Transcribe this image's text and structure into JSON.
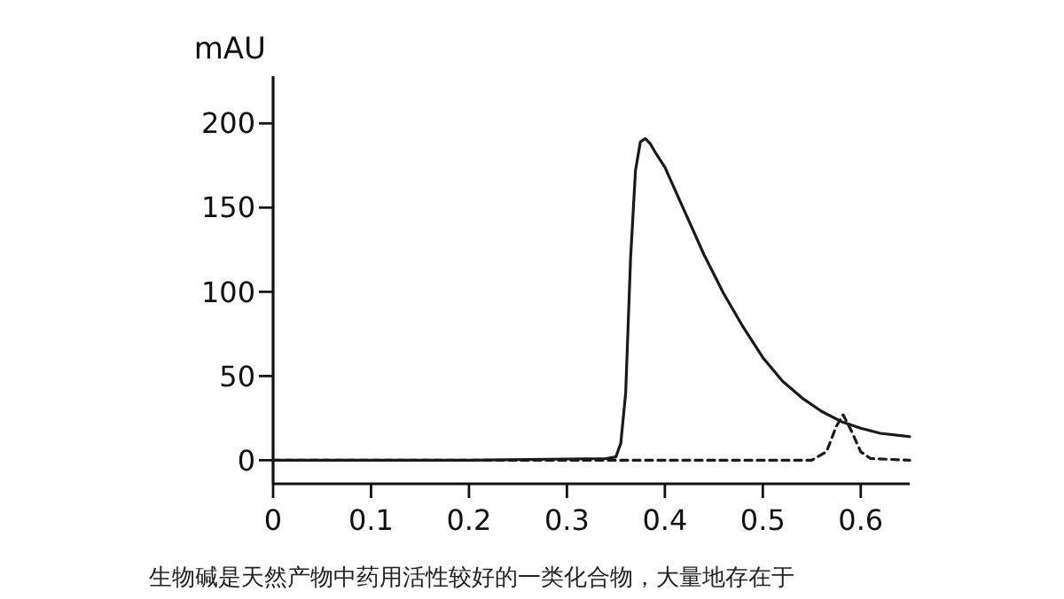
{
  "chart_data": {
    "type": "line",
    "ylabel": "mAU",
    "xlim": [
      0,
      0.65
    ],
    "ylim": [
      -14,
      228
    ],
    "xticks": [
      0,
      0.1,
      0.2,
      0.3,
      0.4,
      0.5,
      0.6
    ],
    "yticks": [
      0,
      50,
      100,
      150,
      200
    ],
    "series": [
      {
        "color": "#1a1a1a",
        "line_style": "solid",
        "x": [
          0,
          0.2,
          0.34,
          0.35,
          0.355,
          0.36,
          0.365,
          0.37,
          0.375,
          0.38,
          0.385,
          0.39,
          0.4,
          0.42,
          0.44,
          0.46,
          0.48,
          0.5,
          0.52,
          0.54,
          0.56,
          0.58,
          0.6,
          0.62,
          0.65
        ],
        "values": [
          0,
          0,
          1,
          2,
          10,
          40,
          120,
          172,
          189,
          191,
          188,
          183,
          174,
          148,
          122,
          99,
          79,
          61,
          47,
          37,
          29,
          23,
          19,
          16,
          14
        ]
      },
      {
        "color": "#1a1a1a",
        "line_style": "dashed",
        "x": [
          0,
          0.3,
          0.55,
          0.565,
          0.575,
          0.582,
          0.59,
          0.6,
          0.61,
          0.65
        ],
        "values": [
          0,
          0,
          0,
          5,
          20,
          27,
          18,
          5,
          1,
          0
        ]
      }
    ],
    "annotations": [
      "生物碱是天然产物中药用活性较好的一类化合物，大量地存在于"
    ]
  }
}
